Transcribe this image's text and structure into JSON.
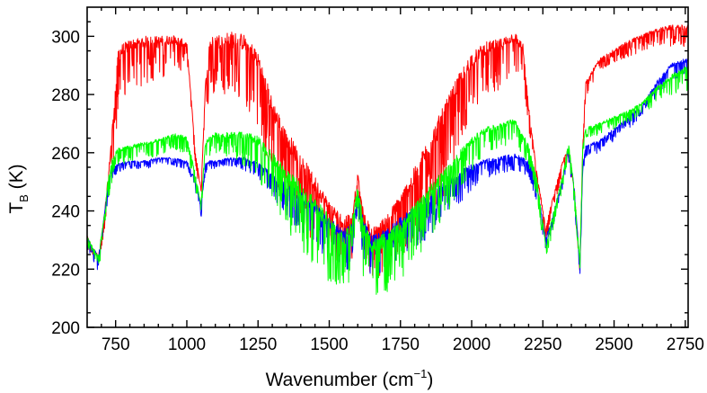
{
  "chart_data": {
    "type": "line",
    "title": "",
    "xlabel": "Wavenumber (cm",
    "xlabel_sup": "−1",
    "xlabel_tail": ")",
    "ylabel": "T",
    "ylabel_sub": "B",
    "ylabel_tail": " (K)",
    "xlim": [
      650,
      2760
    ],
    "ylim": [
      200,
      310
    ],
    "xticks": [
      750,
      1000,
      1250,
      1500,
      1750,
      2000,
      2250,
      2500,
      2750
    ],
    "xtick_labels": [
      "750",
      "1000",
      "1250",
      "1500",
      "1750",
      "2000",
      "2250",
      "2500",
      "2750"
    ],
    "yticks": [
      200,
      220,
      240,
      260,
      280,
      300
    ],
    "ytick_labels": [
      "200",
      "220",
      "240",
      "260",
      "280",
      "300"
    ],
    "grid": false,
    "legend": "none",
    "series": [
      {
        "color": "#ff0000",
        "x": [
          650,
          670,
          690,
          710,
          725,
          740,
          760,
          800,
          850,
          900,
          950,
          980,
          1000,
          1030,
          1050,
          1065,
          1080,
          1100,
          1150,
          1200,
          1250,
          1300,
          1350,
          1400,
          1450,
          1500,
          1550,
          1580,
          1600,
          1620,
          1650,
          1700,
          1750,
          1800,
          1850,
          1900,
          1950,
          2000,
          2050,
          2100,
          2150,
          2180,
          2200,
          2230,
          2260,
          2290,
          2320,
          2340,
          2360,
          2380,
          2390,
          2400,
          2450,
          2500,
          2550,
          2600,
          2650,
          2700,
          2760
        ],
        "y": [
          231,
          227,
          224,
          238,
          252,
          270,
          294,
          297,
          298,
          298,
          299,
          298,
          297,
          260,
          247,
          282,
          297,
          298,
          299,
          298,
          292,
          275,
          265,
          257,
          249,
          241,
          236,
          238,
          252,
          238,
          232,
          236,
          243,
          252,
          262,
          272,
          283,
          292,
          296,
          297,
          300,
          296,
          275,
          252,
          234,
          246,
          257,
          261,
          248,
          221,
          262,
          284,
          292,
          295,
          298,
          300,
          302,
          303,
          303
        ],
        "noise": [
          3,
          3,
          4,
          4,
          6,
          12,
          16,
          10,
          12,
          12,
          8,
          8,
          4,
          4,
          4,
          10,
          14,
          14,
          16,
          16,
          18,
          20,
          18,
          16,
          16,
          14,
          12,
          12,
          6,
          10,
          12,
          14,
          16,
          18,
          20,
          22,
          18,
          14,
          12,
          12,
          10,
          8,
          6,
          4,
          4,
          3,
          3,
          3,
          4,
          3,
          2,
          4,
          3,
          3,
          4,
          4,
          4,
          5,
          5
        ]
      },
      {
        "color": "#0000ff",
        "x": [
          650,
          670,
          690,
          710,
          725,
          740,
          760,
          800,
          850,
          900,
          950,
          1000,
          1030,
          1050,
          1065,
          1080,
          1100,
          1150,
          1200,
          1250,
          1300,
          1350,
          1400,
          1450,
          1500,
          1550,
          1580,
          1600,
          1620,
          1650,
          1700,
          1750,
          1800,
          1850,
          1900,
          1950,
          2000,
          2050,
          2100,
          2150,
          2200,
          2230,
          2260,
          2290,
          2320,
          2340,
          2360,
          2380,
          2390,
          2400,
          2450,
          2500,
          2550,
          2600,
          2650,
          2700,
          2760
        ],
        "y": [
          231,
          227,
          224,
          238,
          250,
          255,
          256,
          257,
          257,
          258,
          258,
          257,
          250,
          241,
          256,
          257,
          257,
          258,
          258,
          256,
          252,
          248,
          245,
          241,
          236,
          232,
          234,
          246,
          235,
          230,
          232,
          236,
          240,
          244,
          248,
          252,
          255,
          257,
          258,
          259,
          257,
          248,
          230,
          240,
          252,
          261,
          248,
          220,
          255,
          262,
          264,
          268,
          272,
          276,
          284,
          290,
          292
        ],
        "noise": [
          3,
          3,
          4,
          4,
          4,
          3,
          2,
          2,
          2,
          2,
          2,
          2,
          3,
          3,
          3,
          2,
          2,
          2,
          3,
          4,
          6,
          8,
          9,
          10,
          10,
          10,
          10,
          5,
          10,
          10,
          10,
          10,
          10,
          10,
          9,
          8,
          6,
          5,
          4,
          4,
          4,
          4,
          3,
          3,
          3,
          3,
          4,
          3,
          2,
          3,
          3,
          3,
          3,
          3,
          4,
          4,
          4
        ]
      },
      {
        "color": "#00ff00",
        "x": [
          650,
          670,
          690,
          710,
          725,
          740,
          760,
          800,
          850,
          900,
          950,
          1000,
          1030,
          1050,
          1065,
          1080,
          1100,
          1150,
          1200,
          1250,
          1300,
          1350,
          1400,
          1450,
          1500,
          1550,
          1580,
          1600,
          1620,
          1650,
          1700,
          1750,
          1800,
          1850,
          1900,
          1950,
          2000,
          2050,
          2100,
          2150,
          2200,
          2230,
          2260,
          2290,
          2320,
          2340,
          2360,
          2380,
          2390,
          2400,
          2450,
          2500,
          2550,
          2600,
          2650,
          2700,
          2760
        ],
        "y": [
          231,
          227,
          224,
          238,
          252,
          258,
          261,
          262,
          263,
          264,
          266,
          265,
          252,
          242,
          263,
          265,
          266,
          266,
          266,
          264,
          258,
          252,
          247,
          242,
          236,
          230,
          234,
          248,
          234,
          228,
          230,
          234,
          240,
          246,
          252,
          258,
          264,
          268,
          269,
          271,
          262,
          250,
          228,
          240,
          252,
          263,
          248,
          222,
          262,
          268,
          270,
          272,
          274,
          277,
          282,
          286,
          289
        ],
        "noise": [
          3,
          3,
          4,
          4,
          6,
          6,
          4,
          4,
          4,
          4,
          4,
          4,
          4,
          4,
          4,
          5,
          5,
          6,
          8,
          10,
          12,
          14,
          16,
          16,
          16,
          14,
          14,
          8,
          14,
          14,
          14,
          14,
          14,
          14,
          12,
          10,
          8,
          6,
          6,
          6,
          5,
          5,
          4,
          4,
          3,
          3,
          4,
          3,
          2,
          3,
          3,
          3,
          3,
          3,
          4,
          5,
          6
        ]
      }
    ]
  }
}
